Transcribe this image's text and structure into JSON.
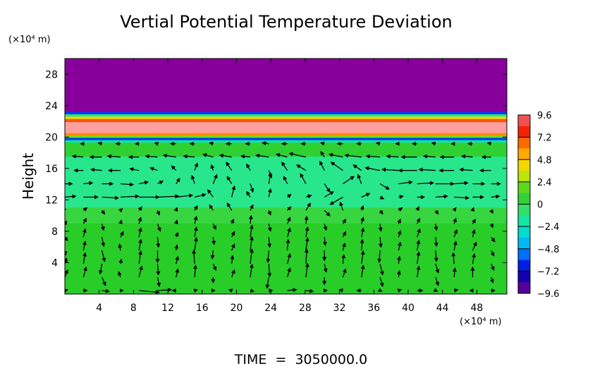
{
  "chart_data": {
    "type": "heatmap",
    "title": "Vertial Potential Temperature Deviation",
    "ylabel": "Height",
    "xunit": "(×10⁴ m)",
    "yunit": "(×10⁴ m)",
    "footer": "TIME  =  3050000.0",
    "xlim": [
      0,
      51.5
    ],
    "ylim": [
      0,
      30
    ],
    "x_ticks": [
      "4",
      "8",
      "12",
      "16",
      "20",
      "24",
      "28",
      "32",
      "36",
      "40",
      "44",
      "48"
    ],
    "x_tick_values": [
      4,
      8,
      12,
      16,
      20,
      24,
      28,
      32,
      36,
      40,
      44,
      48
    ],
    "y_ticks": [
      "4",
      "8",
      "12",
      "16",
      "20",
      "24",
      "28"
    ],
    "y_tick_values": [
      4,
      8,
      12,
      16,
      20,
      24,
      28
    ],
    "colorbar": {
      "labels": [
        "9.6",
        "7.2",
        "4.8",
        "2.4",
        "0",
        "−2.4",
        "−4.8",
        "−7.2",
        "−9.6"
      ],
      "values": [
        9.6,
        7.2,
        4.8,
        2.4,
        0,
        -2.4,
        -4.8,
        -7.2,
        -9.6
      ],
      "range": [
        -9.6,
        9.6
      ]
    },
    "field_bands": [
      {
        "y_from": 23.2,
        "y_to": 30,
        "value": -9.6
      },
      {
        "y_from": 22.9,
        "y_to": 23.2,
        "value": -6
      },
      {
        "y_from": 22.6,
        "y_to": 22.9,
        "value": -1
      },
      {
        "y_from": 22.3,
        "y_to": 22.6,
        "value": 4
      },
      {
        "y_from": 21.9,
        "y_to": 22.3,
        "value": 7
      },
      {
        "y_from": 20.5,
        "y_to": 21.9,
        "value": 9.6
      },
      {
        "y_from": 20.2,
        "y_to": 20.5,
        "value": 6
      },
      {
        "y_from": 19.9,
        "y_to": 20.2,
        "value": 2
      },
      {
        "y_from": 19.6,
        "y_to": 19.9,
        "value": -6
      },
      {
        "y_from": 19.3,
        "y_to": 19.6,
        "value": -2
      },
      {
        "y_from": 17.5,
        "y_to": 19.3,
        "value": 0.8
      },
      {
        "y_from": 11,
        "y_to": 17.5,
        "value": -1.2
      },
      {
        "y_from": 9,
        "y_to": 11,
        "value": 0.3
      },
      {
        "y_from": 0,
        "y_to": 9,
        "value": 1.2
      }
    ],
    "wind_vectors": {
      "x": [
        0,
        2.16,
        4.32,
        6.48,
        8.64,
        10.8,
        12.96,
        15.12,
        17.28,
        19.44,
        21.6,
        23.76,
        25.92,
        28.08,
        30.24,
        32.4,
        34.56,
        36.72,
        38.88,
        41.04,
        43.2,
        45.36,
        47.52,
        49.68
      ],
      "y": [
        0.45,
        2.15,
        3.85,
        5.55,
        7.25,
        8.95,
        10.65,
        12.35,
        14.05,
        15.75,
        17.45,
        19.15
      ],
      "u": [
        [
          0.3,
          0.4,
          0.8,
          0.3,
          2.2,
          1.5,
          -0.4,
          0.3,
          0.2,
          -0.3,
          0.4,
          0.4,
          1.0,
          0.8,
          0.3,
          -0.4,
          -0.5,
          0.2,
          0.3,
          0.6,
          0.2,
          0.4,
          -0.3,
          0.4
        ],
        [
          0.3,
          0.3,
          0.4,
          -0.2,
          0.3,
          0.2,
          0.2,
          0.1,
          0.0,
          0.3,
          0.2,
          -0.2,
          0.3,
          0.2,
          0.0,
          0.3,
          0.2,
          0.3,
          0.1,
          0.2,
          0.3,
          0.1,
          0.0,
          0.2
        ],
        [
          0.2,
          0.2,
          -0.2,
          0.1,
          0.2,
          0.1,
          0.2,
          -0.1,
          0.3,
          0.1,
          0.2,
          0.1,
          0.3,
          0.1,
          0.2,
          0.1,
          0.2,
          0.3,
          0.1,
          0.2,
          0.3,
          -0.1,
          0.2,
          0.3
        ],
        [
          0.1,
          0.2,
          0.3,
          -0.1,
          0.2,
          0.0,
          0.1,
          0.2,
          -0.1,
          0.3,
          0.2,
          -0.1,
          0.1,
          0.2,
          0.0,
          0.2,
          0.1,
          -0.1,
          0.2,
          0.2,
          0.1,
          0.2,
          0.4,
          0.3
        ],
        [
          0.3,
          0.2,
          0.2,
          0.3,
          0.2,
          0.1,
          0.2,
          0.2,
          0.1,
          0.3,
          0.2,
          0.1,
          0.3,
          0.2,
          0.1,
          0.3,
          0.2,
          0.1,
          0.2,
          0.3,
          0.1,
          0.3,
          0.2,
          0.4
        ],
        [
          0.2,
          0.3,
          0.2,
          0.1,
          0.2,
          0.3,
          0.1,
          0.2,
          0.3,
          0.2,
          0.1,
          0.2,
          0.3,
          0.1,
          0.2,
          0.3,
          0.2,
          0.1,
          0.2,
          0.3,
          0.1,
          0.2,
          0.3,
          0.2
        ],
        [
          -0.3,
          0.4,
          0.3,
          0.2,
          0.3,
          0.2,
          0.1,
          0.3,
          -0.4,
          -0.5,
          0.3,
          0.2,
          0.4,
          0.5,
          0.6,
          -0.3,
          0.2,
          0.3,
          0.4,
          0.2,
          0.3,
          0.2,
          0.1,
          0.2
        ],
        [
          1.2,
          1.6,
          1.8,
          2.0,
          2.2,
          2.3,
          1.8,
          1.2,
          -0.6,
          0.3,
          -0.4,
          0.2,
          0.4,
          0.6,
          1.0,
          -1.4,
          0.9,
          0.4,
          0.5,
          0.8,
          1.3,
          1.6,
          1.2,
          0.9
        ],
        [
          0.8,
          1.0,
          1.2,
          1.4,
          1.0,
          0.6,
          0.4,
          -0.3,
          0.4,
          -0.5,
          0.3,
          0.2,
          -0.4,
          -0.6,
          0.6,
          1.2,
          -0.4,
          1.0,
          1.5,
          1.8,
          2.0,
          1.5,
          1.3,
          1.0
        ],
        [
          -0.8,
          -1.0,
          -1.2,
          -1.3,
          -1.0,
          -0.8,
          -0.5,
          0.3,
          -0.2,
          -0.6,
          -0.4,
          0.3,
          -0.6,
          -1.0,
          -0.5,
          -1.3,
          -0.9,
          -1.6,
          -1.8,
          -2.0,
          -1.8,
          -1.6,
          -1.4,
          -1.2
        ],
        [
          -1.4,
          -1.2,
          -1.3,
          -1.4,
          -1.1,
          -1.3,
          -1.4,
          -1.2,
          -1.1,
          -1.3,
          -1.0,
          -1.4,
          -1.2,
          -1.8,
          -0.4,
          -1.5,
          -1.8,
          -1.5,
          -1.3,
          -1.7,
          -1.3,
          -1.5,
          -1.2,
          -1.0
        ],
        [
          -0.4,
          -0.3,
          -0.4,
          -0.5,
          -0.4,
          -0.3,
          -0.6,
          -0.5,
          -0.4,
          -0.6,
          -0.5,
          -0.7,
          -0.6,
          -0.5,
          -0.4,
          -0.6,
          -0.5,
          -0.4,
          -0.3,
          -0.5,
          -0.4,
          -0.3,
          -0.5,
          -0.4
        ]
      ],
      "v": [
        [
          0.1,
          0.0,
          -0.1,
          0.0,
          -0.2,
          0.1,
          0.0,
          0.1,
          0.0,
          0.1,
          -0.1,
          0.0,
          0.1,
          -0.1,
          0.0,
          0.1,
          0.0,
          -0.1,
          0.1,
          0.0,
          -0.1,
          0.1,
          0.0,
          0.0
        ],
        [
          0.8,
          1.1,
          -0.9,
          0.6,
          1.2,
          -1.0,
          0.9,
          1.3,
          -0.6,
          0.8,
          1.4,
          -1.2,
          1.0,
          1.5,
          -0.8,
          0.9,
          1.3,
          -1.0,
          0.7,
          1.2,
          -0.9,
          1.0,
          1.1,
          -0.6
        ],
        [
          0.6,
          1.2,
          -1.1,
          0.5,
          1.4,
          -1.2,
          0.8,
          1.5,
          -0.7,
          0.9,
          1.6,
          -1.4,
          1.1,
          1.6,
          -0.9,
          1.0,
          1.4,
          -1.2,
          0.8,
          1.3,
          -1.0,
          1.2,
          1.1,
          -0.7
        ],
        [
          -0.5,
          1.0,
          -1.2,
          0.7,
          1.2,
          -1.3,
          0.6,
          1.4,
          -0.9,
          0.7,
          1.5,
          -1.3,
          1.2,
          1.4,
          -1.1,
          0.8,
          1.2,
          -1.3,
          0.9,
          1.1,
          -1.2,
          1.0,
          0.9,
          -0.6
        ],
        [
          -0.4,
          0.9,
          -1.0,
          0.6,
          1.0,
          -1.1,
          0.5,
          1.1,
          -0.8,
          0.6,
          1.3,
          -1.1,
          1.0,
          1.1,
          -0.9,
          0.6,
          1.0,
          -1.1,
          0.7,
          0.9,
          -1.0,
          0.8,
          0.8,
          -0.5
        ],
        [
          0.3,
          0.6,
          -0.7,
          0.4,
          0.7,
          -0.8,
          0.4,
          0.8,
          -0.6,
          0.5,
          0.9,
          -0.8,
          0.7,
          0.8,
          -0.7,
          0.5,
          0.7,
          -0.8,
          0.5,
          0.6,
          -0.7,
          0.6,
          0.5,
          -0.4
        ],
        [
          0.2,
          0.3,
          -0.4,
          0.2,
          0.4,
          -0.5,
          0.3,
          0.5,
          0.6,
          0.8,
          0.6,
          -0.5,
          0.4,
          0.8,
          -0.6,
          0.9,
          0.5,
          -0.4,
          0.3,
          0.4,
          -0.4,
          0.3,
          0.3,
          -0.3
        ],
        [
          0.1,
          0.0,
          -0.1,
          0.1,
          0.0,
          0.1,
          0.2,
          0.3,
          0.8,
          1.2,
          0.6,
          0.9,
          0.3,
          0.2,
          0.6,
          -0.8,
          0.4,
          -0.2,
          0.1,
          0.0,
          0.1,
          -0.1,
          0.0,
          0.1
        ],
        [
          0.0,
          0.1,
          0.0,
          -0.1,
          0.2,
          0.3,
          0.6,
          0.9,
          1.0,
          0.8,
          -0.9,
          1.2,
          0.8,
          1.1,
          -0.9,
          0.8,
          1.0,
          -0.6,
          0.2,
          0.1,
          0.0,
          0.1,
          0.0,
          0.0
        ],
        [
          0.1,
          0.0,
          0.1,
          0.0,
          0.2,
          0.3,
          0.5,
          0.8,
          0.6,
          0.9,
          0.7,
          -0.8,
          0.9,
          0.6,
          1.0,
          0.9,
          0.6,
          0.3,
          0.1,
          0.0,
          0.1,
          0.0,
          0.1,
          0.0
        ],
        [
          0.0,
          0.1,
          0.0,
          0.1,
          0.0,
          0.1,
          0.2,
          0.1,
          0.3,
          0.2,
          0.1,
          0.2,
          0.3,
          0.4,
          0.6,
          0.3,
          0.2,
          0.1,
          0.1,
          0.0,
          0.1,
          0.0,
          0.1,
          0.0
        ],
        [
          0.0,
          0.0,
          0.1,
          0.0,
          0.0,
          0.1,
          0.0,
          0.0,
          0.1,
          0.0,
          0.0,
          0.1,
          0.0,
          0.0,
          0.1,
          0.0,
          0.0,
          0.1,
          0.0,
          0.0,
          0.1,
          0.0,
          0.0,
          0.1
        ]
      ]
    }
  }
}
